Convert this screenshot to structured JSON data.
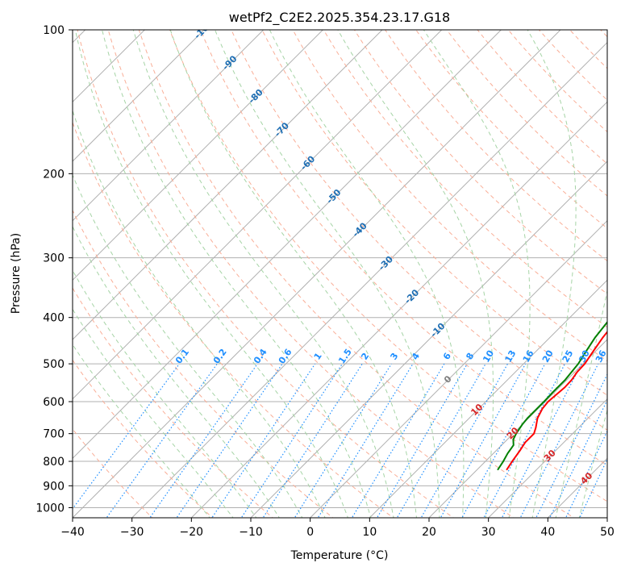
{
  "chart_data": {
    "type": "line",
    "subtype": "skew-t log-p diagram",
    "title": "wetPf2_C2E2.2025.354.23.17.G18",
    "xlabel": "Temperature (°C)",
    "ylabel": "Pressure (hPa)",
    "xlim": [
      -40,
      50
    ],
    "ylim": [
      1050,
      100
    ],
    "x_ticks": [
      -40,
      -30,
      -20,
      -10,
      0,
      10,
      20,
      30,
      40,
      50
    ],
    "x_tick_labels": [
      "−40",
      "−30",
      "−20",
      "−10",
      "0",
      "10",
      "20",
      "30",
      "40",
      "50"
    ],
    "y_ticks": [
      100,
      200,
      300,
      400,
      500,
      600,
      700,
      800,
      900,
      1000
    ],
    "y_tick_labels": [
      "100",
      "200",
      "300",
      "400",
      "500",
      "600",
      "700",
      "800",
      "900",
      "1000"
    ],
    "grid": true,
    "series": [
      {
        "name": "temperature",
        "color": "#ff0000",
        "points": [
          [
            834,
            25.0
          ],
          [
            800,
            24.5
          ],
          [
            760,
            24.0
          ],
          [
            730,
            23.5
          ],
          [
            700,
            23.5
          ],
          [
            680,
            22.8
          ],
          [
            650,
            21.5
          ],
          [
            620,
            20.7
          ],
          [
            600,
            20.5
          ],
          [
            580,
            20.7
          ],
          [
            560,
            20.9
          ],
          [
            540,
            20.8
          ],
          [
            520,
            20.4
          ],
          [
            500,
            20.3
          ],
          [
            470,
            19.6
          ],
          [
            440,
            18.9
          ],
          [
            410,
            18.4
          ],
          [
            390,
            17.7
          ],
          [
            370,
            16.2
          ],
          [
            340,
            15.1
          ],
          [
            320,
            13.4
          ],
          [
            300,
            11.3
          ],
          [
            280,
            9.5
          ],
          [
            260,
            7.8
          ],
          [
            240,
            5.8
          ],
          [
            220,
            3.8
          ],
          [
            200,
            1.8
          ],
          [
            180,
            -0.1
          ],
          [
            160,
            -2.1
          ],
          [
            150,
            -3.1
          ],
          [
            140,
            -4.4
          ],
          [
            130,
            -5.8
          ],
          [
            120,
            -7.2
          ],
          [
            115,
            -7.6
          ],
          [
            108,
            -6.7
          ],
          [
            100,
            -5.7
          ]
        ]
      },
      {
        "name": "dewpoint",
        "color": "#008000",
        "points": [
          [
            834,
            23.5
          ],
          [
            800,
            23.0
          ],
          [
            770,
            22.4
          ],
          [
            740,
            22.0
          ],
          [
            720,
            21.0
          ],
          [
            700,
            20.5
          ],
          [
            670,
            20.0
          ],
          [
            650,
            19.8
          ],
          [
            620,
            19.8
          ],
          [
            600,
            19.8
          ],
          [
            570,
            19.7
          ],
          [
            540,
            19.7
          ],
          [
            500,
            19.2
          ],
          [
            470,
            18.4
          ],
          [
            440,
            17.6
          ],
          [
            410,
            17.1
          ],
          [
            390,
            16.8
          ],
          [
            375,
            15.4
          ],
          [
            360,
            14.3
          ],
          [
            345,
            13.6
          ],
          [
            335,
            13.8
          ],
          [
            320,
            11.8
          ],
          [
            300,
            8.7
          ],
          [
            290,
            7.2
          ],
          [
            265,
            5.1
          ],
          [
            240,
            0.9
          ],
          [
            230,
            0.1
          ],
          [
            218,
            -1.6
          ],
          [
            205,
            -2.3
          ],
          [
            193,
            -3.2
          ],
          [
            183,
            -4.6
          ],
          [
            170,
            -6.9
          ],
          [
            160,
            -8.1
          ],
          [
            145,
            -9.3
          ],
          [
            130,
            -9.9
          ],
          [
            122,
            -10.5
          ],
          [
            116,
            -11.3
          ],
          [
            112,
            -11.4
          ],
          [
            107,
            -10.8
          ],
          [
            103,
            -10.0
          ],
          [
            100,
            -9.5
          ]
        ]
      }
    ],
    "mixing_ratio_labels": [
      "0.1",
      "0.2",
      "0.4",
      "0.6",
      "1",
      "1.5",
      "2",
      "3",
      "4",
      "6",
      "8",
      "10",
      "13",
      "16",
      "20",
      "25",
      "30",
      "36"
    ],
    "mixing_ratio_values": [
      0.1,
      0.2,
      0.4,
      0.6,
      1,
      1.5,
      2,
      3,
      4,
      6,
      8,
      10,
      13,
      16,
      20,
      25,
      30,
      36
    ],
    "dry_adiabat_labels": [
      "-100",
      "-90",
      "-80",
      "-70",
      "-60",
      "-50",
      "-40",
      "-30",
      "-20",
      "-10"
    ],
    "dry_adiabat_values": [
      -100,
      -90,
      -80,
      -70,
      -60,
      -50,
      -40,
      -30,
      -20,
      -10
    ],
    "moist_adiabat_labels": [
      "0",
      "10",
      "20",
      "30",
      "40"
    ],
    "moist_adiabat_values": [
      0,
      10,
      20,
      30,
      40
    ],
    "colors": {
      "isotherm": "#b0b0b0",
      "isobar": "#b0b0b0",
      "dry_adiabat": "#f9ae97",
      "moist_adiabat": "#a6d4a6",
      "mixing_ratio": "#1f8fff",
      "dry_adiabat_label": "#1f6fb4",
      "moist_adiabat_label": "#d62728",
      "mixing_ratio_label": "#1f8fff",
      "zero_label": "#7f7f7f"
    }
  }
}
